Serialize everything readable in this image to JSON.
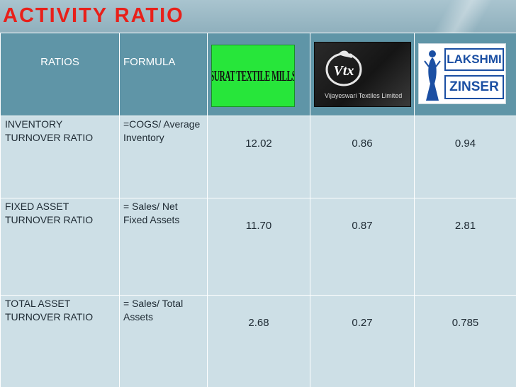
{
  "title": "ACTIVITY RATIO",
  "colors": {
    "title": "#e8201a",
    "header_band": "#9fbccb",
    "table_header": "#5f95a7",
    "table_body": "#cddfe6",
    "surat_logo_green": "#27e63a",
    "lakshmi_blue": "#1b4fa3"
  },
  "table": {
    "headers": {
      "ratios": "RATIOS",
      "formula": "FORMULA"
    },
    "companies": {
      "surat": {
        "logo_text": "SURAT TEXTILE MILLS",
        "icon": "surat-textile-mills-logo"
      },
      "vtx": {
        "logo_mark": "Vtx",
        "logo_text": "Vijayeswari Textiles Limited",
        "icon": "vijayeswari-textiles-logo"
      },
      "lakshmi": {
        "logo_line1": "LAKSHMI",
        "logo_line2": "ZINSER",
        "icon": "lakshmi-zinser-logo"
      }
    },
    "rows": [
      {
        "ratio": "INVENTORY TURNOVER RATIO",
        "formula": "=COGS/ Average Inventory",
        "surat": "12.02",
        "vtx": "0.86",
        "lakshmi": "0.94"
      },
      {
        "ratio": "FIXED  ASSET TURNOVER RATIO",
        "formula": "= Sales/ Net Fixed Assets",
        "surat": "11.70",
        "vtx": "0.87",
        "lakshmi": "2.81"
      },
      {
        "ratio": "TOTAL  ASSET TURNOVER RATIO",
        "formula": "= Sales/ Total Assets",
        "surat": "2.68",
        "vtx": "0.27",
        "lakshmi": "0.785"
      }
    ]
  }
}
